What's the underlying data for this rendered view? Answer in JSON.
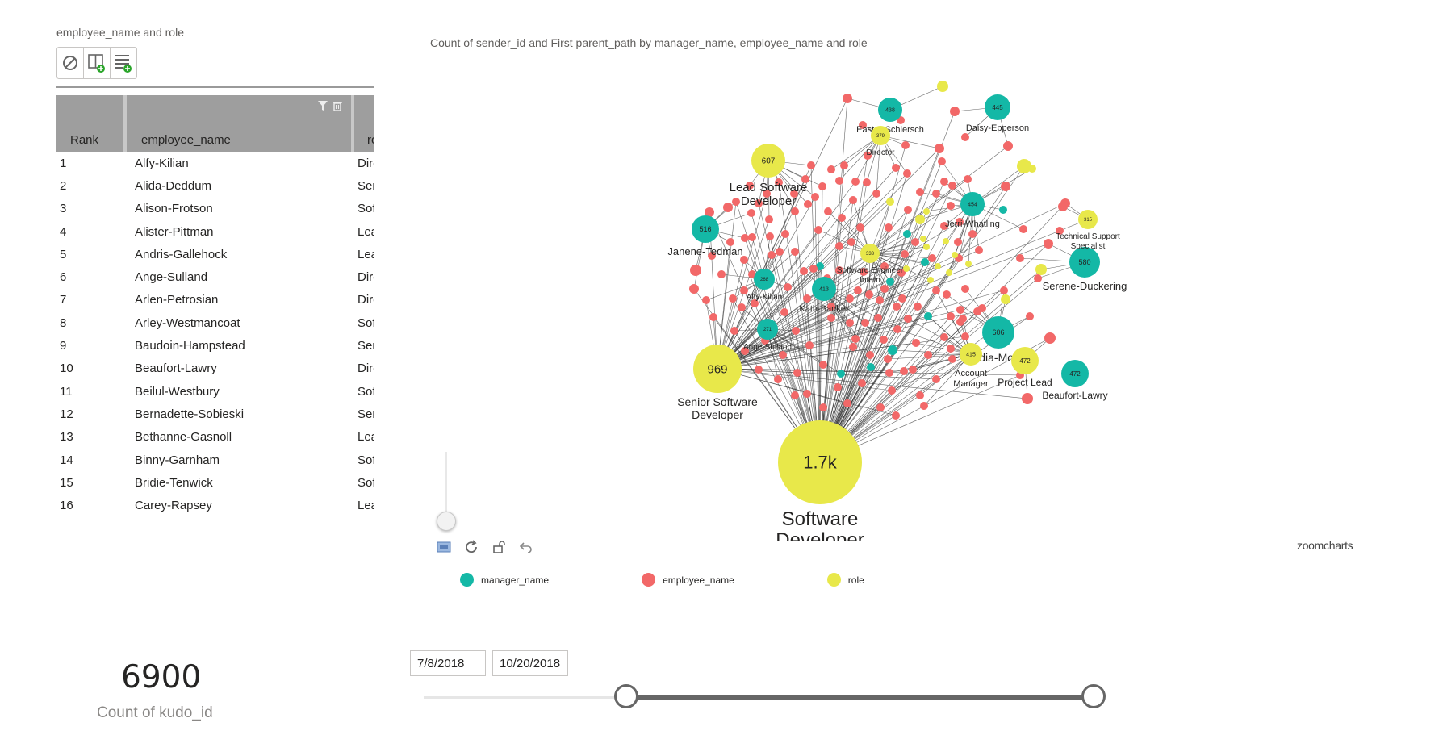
{
  "table_visual": {
    "title": "employee_name and role",
    "toolbar": [
      {
        "icon": "clear-filter-icon"
      },
      {
        "icon": "add-table-column-icon"
      },
      {
        "icon": "add-list-rows-icon"
      }
    ],
    "columns": {
      "rank": "Rank",
      "name": "employee_name",
      "role": "role"
    },
    "rows": [
      {
        "rank": "1",
        "name": "Alfy-Kilian",
        "role": "Director"
      },
      {
        "rank": "2",
        "name": "Alida-Deddum",
        "role": "Senior D"
      },
      {
        "rank": "3",
        "name": "Alison-Frotson",
        "role": "Software"
      },
      {
        "rank": "4",
        "name": "Alister-Pittman",
        "role": "Lead Sof"
      },
      {
        "rank": "5",
        "name": "Andris-Gallehock",
        "role": "Lead Sof"
      },
      {
        "rank": "6",
        "name": "Ange-Sulland",
        "role": "Director"
      },
      {
        "rank": "7",
        "name": "Arlen-Petrosian",
        "role": "Director"
      },
      {
        "rank": "8",
        "name": "Arley-Westmancoat",
        "role": "Software"
      },
      {
        "rank": "9",
        "name": "Baudoin-Hampstead",
        "role": "Senior S"
      },
      {
        "rank": "10",
        "name": "Beaufort-Lawry",
        "role": "Director"
      },
      {
        "rank": "11",
        "name": "Beilul-Westbury",
        "role": "Software"
      },
      {
        "rank": "12",
        "name": "Bernadette-Sobieski",
        "role": "Senior D"
      },
      {
        "rank": "13",
        "name": "Bethanne-Gasnoll",
        "role": "Lead Tec"
      },
      {
        "rank": "14",
        "name": "Binny-Garnham",
        "role": "Software"
      },
      {
        "rank": "15",
        "name": "Bridie-Tenwick",
        "role": "Software"
      },
      {
        "rank": "16",
        "name": "Carey-Rapsey",
        "role": "Lead Sof"
      }
    ]
  },
  "network": {
    "title": "Count of sender_id and First parent_path by manager_name, employee_name and role",
    "colors": {
      "manager_name": "#14b8a6",
      "employee_name": "#f26868",
      "role": "#e8e84a"
    },
    "legend": [
      {
        "label": "manager_name",
        "color": "#14b8a6"
      },
      {
        "label": "employee_name",
        "color": "#f26868"
      },
      {
        "label": "role",
        "color": "#e8e84a"
      }
    ],
    "brand": "zoomcharts",
    "controls": [
      "image-export-icon",
      "refresh-icon",
      "unlock-icon",
      "undo-icon"
    ],
    "zoom_level": 0.1,
    "labeled_nodes": [
      {
        "value": "1.7k",
        "label": "Software Developer",
        "type": "role"
      },
      {
        "value": "969",
        "label": "Senior Software Developer",
        "type": "role"
      },
      {
        "value": "607",
        "label": "Lead Software Developer",
        "type": "role"
      },
      {
        "value": "516",
        "label": "Janene-Tedman",
        "type": "manager_name"
      },
      {
        "value": "580",
        "label": "Serene-Duckering",
        "type": "manager_name"
      },
      {
        "value": "606",
        "label": "Nydia-Mollett",
        "type": "manager_name"
      },
      {
        "value": "472",
        "label": "Beaufort-Lawry",
        "type": "manager_name"
      },
      {
        "value": "472",
        "label": "Project Lead",
        "type": "role"
      },
      {
        "value": "445",
        "label": "Daisy-Epperson",
        "type": "manager_name"
      },
      {
        "value": "438",
        "label": "Easter-Schiersch",
        "type": "manager_name"
      },
      {
        "value": "379",
        "label": "Director",
        "type": "role"
      },
      {
        "value": "454",
        "label": "Jerri-Whatling",
        "type": "manager_name"
      },
      {
        "value": "413",
        "label": "Kath-Banker",
        "type": "manager_name"
      },
      {
        "value": "415",
        "label": "Account Manager",
        "type": "role"
      },
      {
        "value": "333",
        "label": "Software Engineer Intern",
        "type": "role"
      },
      {
        "value": "315",
        "label": "Technical Support Specialist",
        "type": "role"
      },
      {
        "value": "268",
        "label": "Alfy-Kilian",
        "type": "manager_name"
      },
      {
        "value": "271",
        "label": "Ange-Sulland",
        "type": "manager_name"
      }
    ]
  },
  "card": {
    "value": "6900",
    "label": "Count of kudo_id"
  },
  "date_slicer": {
    "start": "7/8/2018",
    "end": "10/20/2018",
    "selected_range_fraction": [
      0.3,
      0.9
    ]
  }
}
